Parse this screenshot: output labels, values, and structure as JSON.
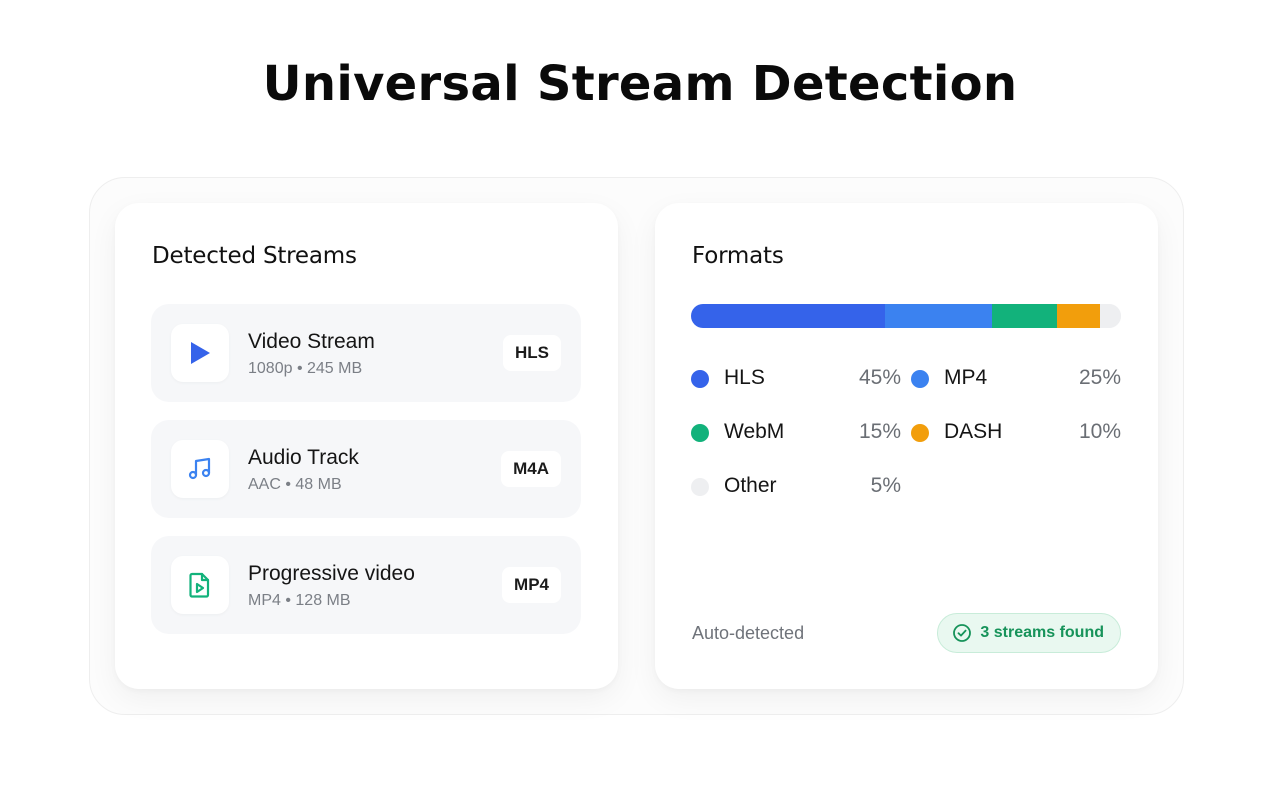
{
  "page_title": "Universal Stream Detection",
  "streams_panel": {
    "title": "Detected Streams",
    "items": [
      {
        "name": "Video Stream",
        "meta": "1080p • 245 MB",
        "badge": "HLS",
        "icon": "play-icon"
      },
      {
        "name": "Audio Track",
        "meta": "AAC • 48 MB",
        "badge": "M4A",
        "icon": "music-note-icon"
      },
      {
        "name": "Progressive video",
        "meta": "MP4 • 128 MB",
        "badge": "MP4",
        "icon": "video-file-icon"
      }
    ]
  },
  "formats_panel": {
    "title": "Formats",
    "segments": [
      {
        "label": "HLS",
        "percent": 45,
        "percent_text": "45%",
        "color": "#3563ea"
      },
      {
        "label": "MP4",
        "percent": 25,
        "percent_text": "25%",
        "color": "#3b82f0"
      },
      {
        "label": "WebM",
        "percent": 15,
        "percent_text": "15%",
        "color": "#12b27b"
      },
      {
        "label": "DASH",
        "percent": 10,
        "percent_text": "10%",
        "color": "#f29e0c"
      },
      {
        "label": "Other",
        "percent": 5,
        "percent_text": "5%",
        "color": "#eeeff1"
      }
    ],
    "footer_label": "Auto-detected",
    "found_badge": "3 streams found"
  },
  "colors": {
    "play_icon": "#3563ea",
    "music_icon": "#3b82f0",
    "file_icon": "#12b27b",
    "success": "#17935a"
  }
}
